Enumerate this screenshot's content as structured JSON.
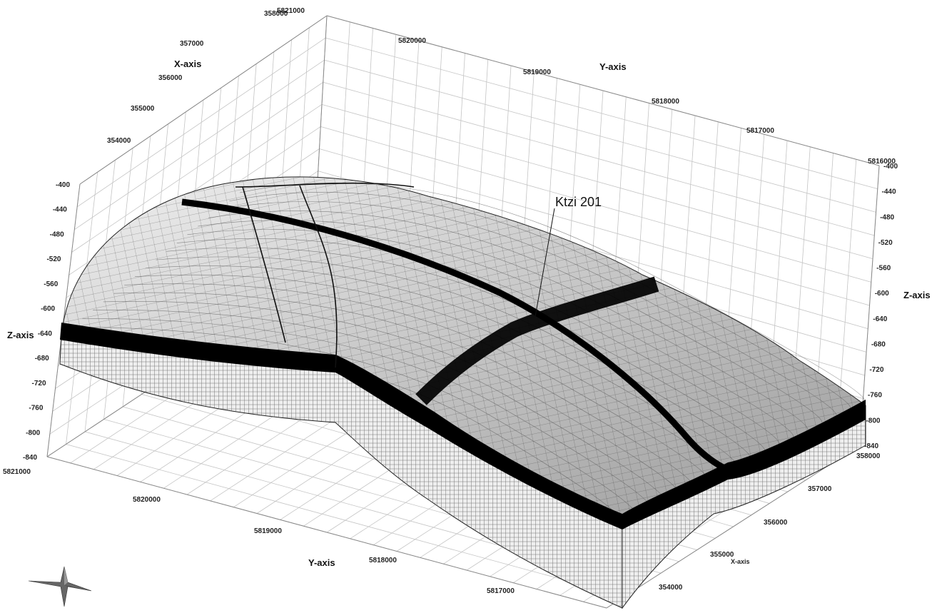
{
  "axes": {
    "x_axis_title": "X-axis",
    "y_axis_title": "Y-axis",
    "z_axis_title": "Z-axis",
    "x_ticks_back": [
      "354000",
      "355000",
      "356000",
      "357000",
      "358000"
    ],
    "x_corner_back": "5821000",
    "y_ticks_back": [
      "5820000",
      "5819000",
      "5818000",
      "5817000"
    ],
    "y_corner_right": "5816000",
    "z_ticks_left": [
      "-400",
      "-440",
      "-480",
      "-520",
      "-560",
      "-600",
      "-640",
      "-680",
      "-720",
      "-760",
      "-800",
      "-840"
    ],
    "z_ticks_right": [
      "-400",
      "-440",
      "-480",
      "-520",
      "-560",
      "-600",
      "-640",
      "-680",
      "-720",
      "-760",
      "-800",
      "-840"
    ],
    "y_ticks_front": [
      "5821000",
      "5820000",
      "5819000",
      "5818000",
      "5817000"
    ],
    "x_ticks_front": [
      "358000",
      "357000",
      "356000",
      "355000",
      "354000"
    ]
  },
  "well": {
    "name": "Ktzi 201"
  },
  "colors": {
    "surface_light": "#e8e8e8",
    "surface_dark": "#8a8a8a",
    "fault_band": "#000000",
    "grid": "#c4c4c4"
  },
  "icons": {
    "north_arrow": "compass-star-icon"
  }
}
